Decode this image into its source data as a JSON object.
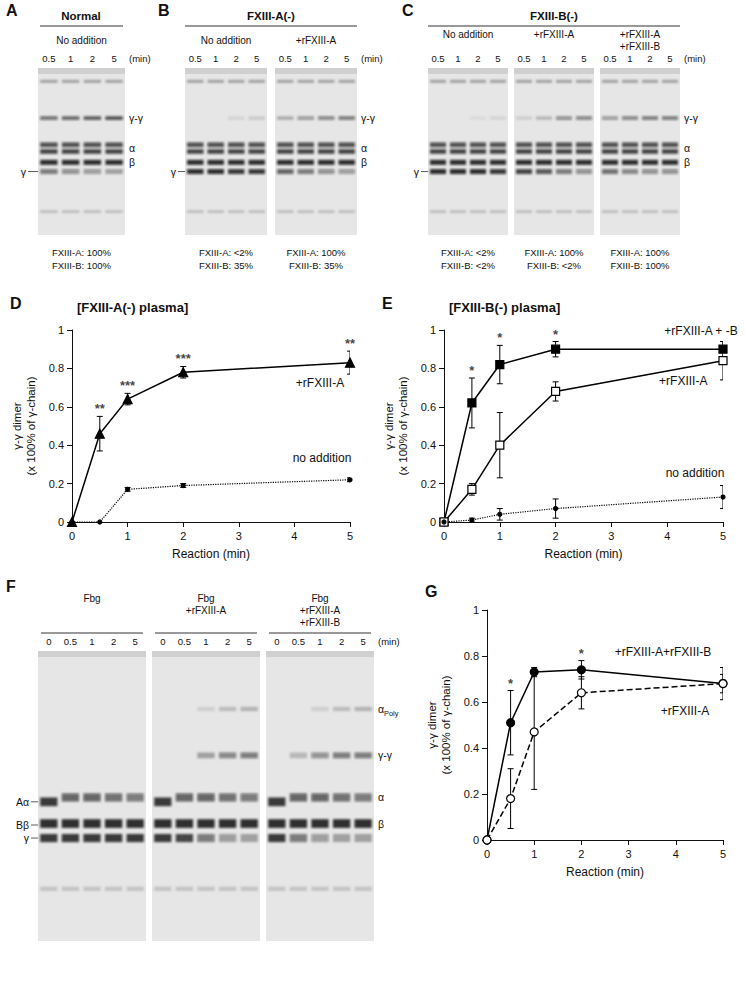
{
  "gels": [
    {
      "panel": "A",
      "title": "Normal",
      "times": [
        0.5,
        1,
        2,
        5
      ],
      "time_unit": "(min)",
      "left_labels": [
        "γ"
      ],
      "right_labels": [
        "γ-γ",
        "α",
        "β"
      ],
      "groups": [
        {
          "label": [
            "No addition"
          ],
          "footer": [
            "FXIII-A: 100%",
            "FXIII-B: 100%"
          ]
        }
      ]
    },
    {
      "panel": "B",
      "title": "FXIII-A(-)",
      "times": [
        0.5,
        1,
        2,
        5
      ],
      "time_unit": "(min)",
      "left_labels": [
        "γ"
      ],
      "right_labels": [
        "γ-γ",
        "α",
        "β"
      ],
      "groups": [
        {
          "label": [
            "No addition"
          ],
          "footer": [
            "FXIII-A: <2%",
            "FXIII-B: 35%"
          ]
        },
        {
          "label": [
            "+rFXIII-A"
          ],
          "footer": [
            "FXIII-A: 100%",
            "FXIII-B: 35%"
          ]
        }
      ]
    },
    {
      "panel": "C",
      "title": "FXIII-B(-)",
      "times": [
        0.5,
        1,
        2,
        5
      ],
      "time_unit": "(min)",
      "left_labels": [
        "γ"
      ],
      "right_labels": [
        "γ-γ",
        "α",
        "β"
      ],
      "groups": [
        {
          "label": [
            "No addition"
          ],
          "footer": [
            "FXIII-A: <2%",
            "FXIII-B: <2%"
          ]
        },
        {
          "label": [
            "+rFXIII-A"
          ],
          "footer": [
            "FXIII-A: 100%",
            "FXIII-B: <2%"
          ]
        },
        {
          "label": [
            "+rFXIII-A",
            "+rFXIII-B"
          ],
          "footer": [
            "FXIII-A: 100%",
            "FXIII-B: 100%"
          ]
        }
      ]
    },
    {
      "panel": "F",
      "times": [
        0,
        0.5,
        1,
        2,
        5
      ],
      "time_unit": "(min)",
      "left_labels": [
        "Aα",
        "Bβ",
        "γ"
      ],
      "right_labels": [
        {
          "text": "α",
          "sub": "Poly"
        },
        "γ-γ",
        "α",
        "β"
      ],
      "groups": [
        {
          "label": [
            "Fbg"
          ]
        },
        {
          "label": [
            "Fbg",
            "+rFXIII-A"
          ]
        },
        {
          "label": [
            "Fbg",
            "+rFXIII-A",
            "+rFXIII-B"
          ]
        }
      ]
    }
  ],
  "chart_data": [
    {
      "type": "line",
      "panel": "D",
      "title": "[FXIII-A(-) plasma]",
      "x_label": "Reaction (min)",
      "y_label": "γ-γ dimer\n(x 100% of γ-chain)",
      "x": [
        0,
        0.5,
        1,
        2,
        5
      ],
      "xlim": [
        0,
        5
      ],
      "xticks": [
        0,
        1,
        2,
        3,
        4,
        5
      ],
      "ylim": [
        0,
        1
      ],
      "yticks": [
        0,
        0.2,
        0.4,
        0.6,
        0.8,
        1
      ],
      "grid": false,
      "series": [
        {
          "name": "+rFXIII-A",
          "color": "#000000",
          "marker": "triangle",
          "line_style": "solid",
          "values": [
            0,
            0.46,
            0.64,
            0.78,
            0.83
          ],
          "errors": [
            0,
            0.09,
            0.03,
            0.03,
            0.06
          ]
        },
        {
          "name": "no addition",
          "color": "#000000",
          "marker": "dot",
          "line_style": "dotted",
          "values": [
            0,
            0,
            0.17,
            0.19,
            0.22
          ],
          "errors": [
            0,
            0,
            0.01,
            0.01,
            0.01
          ]
        }
      ],
      "annotations": [
        {
          "x": 0.5,
          "text": "**"
        },
        {
          "x": 1,
          "text": "***"
        },
        {
          "x": 2,
          "text": "***"
        },
        {
          "x": 5,
          "text": "**"
        }
      ]
    },
    {
      "type": "line",
      "panel": "E",
      "title": "[FXIII-B(-) plasma]",
      "x_label": "Reaction (min)",
      "y_label": "γ-γ dimer\n(x 100% of γ-chain)",
      "x": [
        0,
        0.5,
        1,
        2,
        5
      ],
      "xlim": [
        0,
        5
      ],
      "xticks": [
        0,
        1,
        2,
        3,
        4,
        5
      ],
      "ylim": [
        0,
        1
      ],
      "yticks": [
        0,
        0.2,
        0.4,
        0.6,
        0.8,
        1
      ],
      "grid": false,
      "series": [
        {
          "name": "+rFXIII-A + -B",
          "color": "#000000",
          "marker": "square",
          "line_style": "solid",
          "values": [
            0,
            0.62,
            0.82,
            0.9,
            0.9
          ],
          "errors": [
            0,
            0.13,
            0.1,
            0.04,
            0.04
          ]
        },
        {
          "name": "+rFXIII-A",
          "color": "#000000",
          "marker": "open_square",
          "line_style": "solid",
          "values": [
            0,
            0.17,
            0.4,
            0.68,
            0.84
          ],
          "errors": [
            0,
            0.03,
            0.17,
            0.05,
            0.1
          ]
        },
        {
          "name": "no addition",
          "color": "#000000",
          "marker": "dot",
          "line_style": "dotted",
          "values": [
            0,
            0.01,
            0.04,
            0.07,
            0.13
          ],
          "errors": [
            0,
            0.01,
            0.03,
            0.05,
            0.06
          ]
        }
      ],
      "annotations": [
        {
          "x": 0.5,
          "text": "*"
        },
        {
          "x": 1,
          "text": "*"
        },
        {
          "x": 2,
          "text": "*"
        }
      ]
    },
    {
      "type": "line",
      "panel": "G",
      "x_label": "Reaction (min)",
      "y_label": "γ-γ dimer\n(x 100% of γ-chain)",
      "x": [
        0,
        0.5,
        1,
        2,
        5
      ],
      "xlim": [
        0,
        5
      ],
      "xticks": [
        0,
        1,
        2,
        3,
        4,
        5
      ],
      "ylim": [
        0,
        1
      ],
      "yticks": [
        0,
        0.2,
        0.4,
        0.6,
        0.8,
        1
      ],
      "grid": false,
      "series": [
        {
          "name": "+rFXIII-A+rFXIII-B",
          "color": "#000000",
          "marker": "circle",
          "line_style": "solid",
          "values": [
            0,
            0.51,
            0.73,
            0.74,
            0.68
          ],
          "errors": [
            0,
            0.14,
            0.02,
            0.04,
            0.07
          ]
        },
        {
          "name": "+rFXIII-A",
          "color": "#000000",
          "marker": "open_circle",
          "line_style": "dashed",
          "values": [
            0,
            0.18,
            0.47,
            0.64,
            0.68
          ],
          "errors": [
            0,
            0.13,
            0.25,
            0.07,
            0.04
          ]
        }
      ],
      "annotations": [
        {
          "x": 0.5,
          "text": "*"
        },
        {
          "x": 2,
          "text": "*"
        }
      ]
    }
  ]
}
